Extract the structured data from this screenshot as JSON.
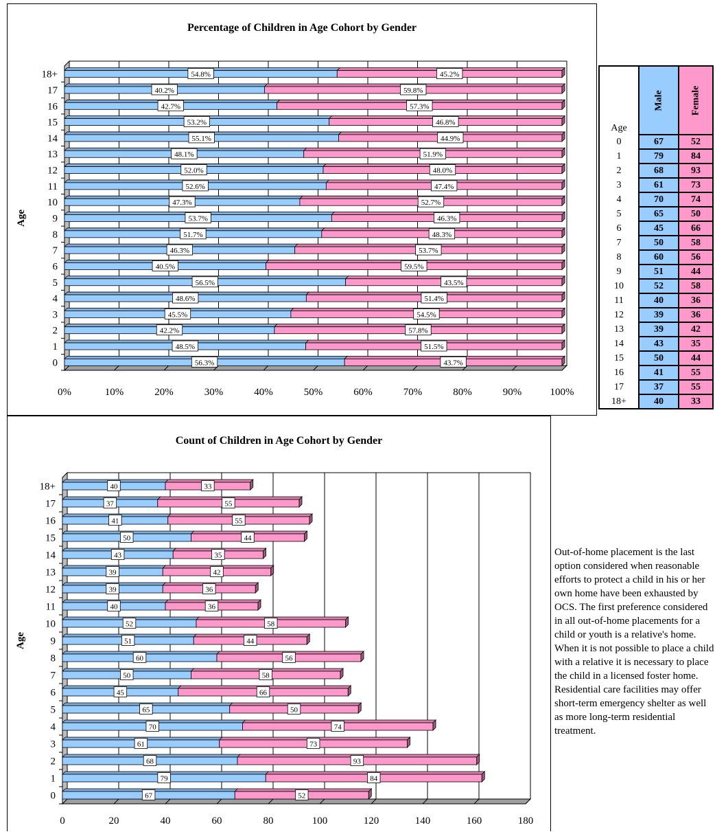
{
  "charts": {
    "percent": {
      "title": "Percentage of  Children in Age Cohort by Gender",
      "ylabel": "Age",
      "xticks": [
        "0%",
        "10%",
        "20%",
        "30%",
        "40%",
        "50%",
        "60%",
        "70%",
        "80%",
        "90%",
        "100%"
      ]
    },
    "count": {
      "title": "Count of  Children in Age Cohort by Gender",
      "ylabel": "Age",
      "xticks": [
        "0",
        "20",
        "40",
        "60",
        "80",
        "100",
        "120",
        "140",
        "160",
        "180"
      ]
    }
  },
  "chart_data": [
    {
      "type": "bar",
      "orientation": "horizontal",
      "stacked": "percent",
      "title": "Percentage of  Children in Age Cohort by Gender",
      "xlabel": "",
      "ylabel": "Age",
      "xlim": [
        0,
        100
      ],
      "categories": [
        "0",
        "1",
        "2",
        "3",
        "4",
        "5",
        "6",
        "7",
        "8",
        "9",
        "10",
        "11",
        "12",
        "13",
        "14",
        "15",
        "16",
        "17",
        "18+"
      ],
      "series": [
        {
          "values": [
            56.3,
            48.5,
            42.2,
            45.5,
            48.6,
            56.5,
            40.5,
            46.3,
            51.7,
            53.7,
            47.3,
            52.6,
            52.0,
            48.1,
            55.1,
            53.2,
            42.7,
            40.2,
            54.8
          ],
          "labels": [
            "56.3%",
            "48.5%",
            "42.2%",
            "45.5%",
            "48.6%",
            "56.5%",
            "40.5%",
            "46.3%",
            "51.7%",
            "53.7%",
            "47.3%",
            "52.6%",
            "52.0%",
            "48.1%",
            "55.1%",
            "53.2%",
            "42.7%",
            "40.2%",
            "54.8%"
          ]
        },
        {
          "values": [
            43.7,
            51.5,
            57.8,
            54.5,
            51.4,
            43.5,
            59.5,
            53.7,
            48.3,
            46.3,
            52.7,
            47.4,
            48.0,
            51.9,
            44.9,
            46.8,
            57.3,
            59.8,
            45.2
          ],
          "labels": [
            "43.7%",
            "51.5%",
            "57.8%",
            "54.5%",
            "51.4%",
            "43.5%",
            "59.5%",
            "53.7%",
            "48.3%",
            "46.3%",
            "52.7%",
            "47.4%",
            "48.0%",
            "51.9%",
            "44.9%",
            "46.8%",
            "57.3%",
            "59.8%",
            "45.2%"
          ]
        }
      ],
      "colors": [
        "#99ccff",
        "#ff99cc"
      ],
      "grid": "vertical"
    },
    {
      "type": "bar",
      "orientation": "horizontal",
      "stacked": true,
      "title": "Count of  Children in Age Cohort by Gender",
      "xlabel": "",
      "ylabel": "Age",
      "xlim": [
        0,
        180
      ],
      "categories": [
        "0",
        "1",
        "2",
        "3",
        "4",
        "5",
        "6",
        "7",
        "8",
        "9",
        "10",
        "11",
        "12",
        "13",
        "14",
        "15",
        "16",
        "17",
        "18+"
      ],
      "series": [
        {
          "values": [
            67,
            79,
            68,
            61,
            70,
            65,
            45,
            50,
            60,
            51,
            52,
            40,
            39,
            39,
            43,
            50,
            41,
            37,
            40
          ]
        },
        {
          "values": [
            52,
            84,
            93,
            73,
            74,
            50,
            66,
            58,
            56,
            44,
            58,
            36,
            36,
            42,
            35,
            44,
            55,
            55,
            33
          ]
        }
      ],
      "colors": [
        "#99ccff",
        "#ff99cc"
      ],
      "grid": "vertical"
    }
  ],
  "table": {
    "age_header": "Age",
    "male_header": "Male",
    "female_header": "Female",
    "rows": [
      {
        "age": "0",
        "male": "67",
        "female": "52"
      },
      {
        "age": "1",
        "male": "79",
        "female": "84"
      },
      {
        "age": "2",
        "male": "68",
        "female": "93"
      },
      {
        "age": "3",
        "male": "61",
        "female": "73"
      },
      {
        "age": "4",
        "male": "70",
        "female": "74"
      },
      {
        "age": "5",
        "male": "65",
        "female": "50"
      },
      {
        "age": "6",
        "male": "45",
        "female": "66"
      },
      {
        "age": "7",
        "male": "50",
        "female": "58"
      },
      {
        "age": "8",
        "male": "60",
        "female": "56"
      },
      {
        "age": "9",
        "male": "51",
        "female": "44"
      },
      {
        "age": "10",
        "male": "52",
        "female": "58"
      },
      {
        "age": "11",
        "male": "40",
        "female": "36"
      },
      {
        "age": "12",
        "male": "39",
        "female": "36"
      },
      {
        "age": "13",
        "male": "39",
        "female": "42"
      },
      {
        "age": "14",
        "male": "43",
        "female": "35"
      },
      {
        "age": "15",
        "male": "50",
        "female": "44"
      },
      {
        "age": "16",
        "male": "41",
        "female": "55"
      },
      {
        "age": "17",
        "male": "37",
        "female": "55"
      },
      {
        "age": "18+",
        "male": "40",
        "female": "33"
      }
    ]
  },
  "note": "Out-of-home placement is the last option considered when reasonable efforts to protect a child in his or her own home have been exhausted by OCS. The first preference considered in all out-of-home placements for a child or youth is a relative's home.  When it is not possible to place a child with a relative it is necessary to place the child in a licensed foster home. Residential care facilities may offer short-term emergency shelter as well as more long-term residential treatment."
}
